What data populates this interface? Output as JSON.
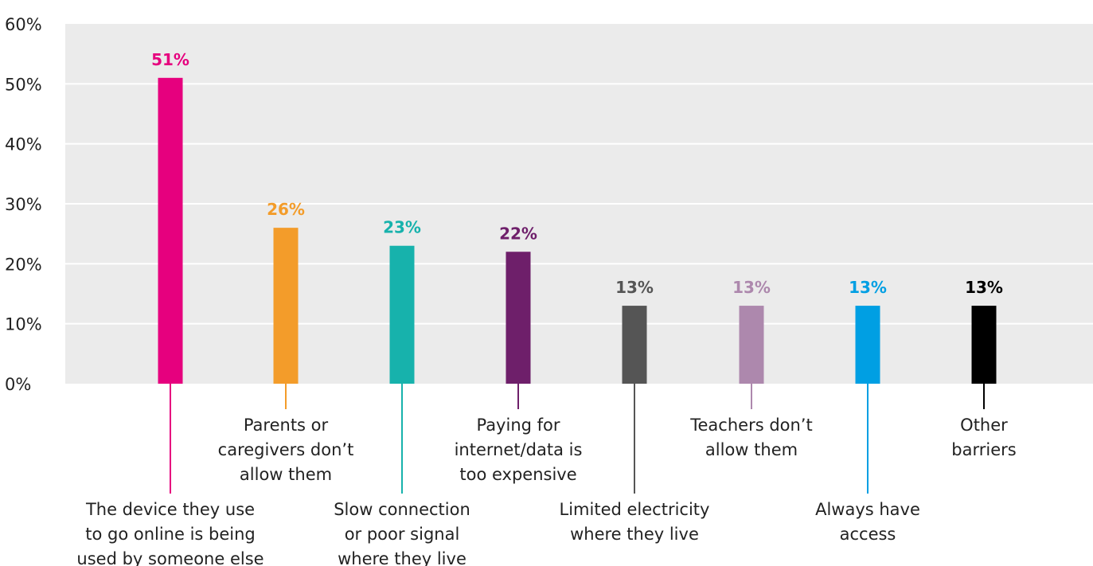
{
  "chart_data": {
    "type": "bar",
    "title": "",
    "xlabel": "",
    "ylabel": "",
    "ylim": [
      0,
      60
    ],
    "yticks": [
      0,
      10,
      20,
      30,
      40,
      50,
      60
    ],
    "ytick_labels": [
      "0%",
      "10%",
      "20%",
      "30%",
      "40%",
      "50%",
      "60%"
    ],
    "grid": true,
    "categories": [
      "The device they use to go online is being used by someone else",
      "Parents or caregivers don’t allow them",
      "Slow connection or poor signal where they live",
      "Paying for internet/data is too expensive",
      "Limited electricity where they live",
      "Teachers don’t allow them",
      "Always have access",
      "Other barriers"
    ],
    "category_lines": [
      [
        "The device they use",
        "to go online is being",
        "used by someone else"
      ],
      [
        "Parents or",
        "caregivers don’t",
        "allow them"
      ],
      [
        "Slow connection",
        "or poor signal",
        "where they live"
      ],
      [
        "Paying for",
        "internet/data is",
        "too expensive"
      ],
      [
        "Limited electricity",
        "where they live"
      ],
      [
        "Teachers don’t",
        "allow them"
      ],
      [
        "Always have",
        "access"
      ],
      [
        "Other",
        "barriers"
      ]
    ],
    "values": [
      51,
      26,
      23,
      22,
      13,
      13,
      13,
      13
    ],
    "data_labels": [
      "51%",
      "26%",
      "23%",
      "22%",
      "13%",
      "13%",
      "13%",
      "13%"
    ],
    "colors": [
      "#e6007e",
      "#f39c2a",
      "#17b2ac",
      "#6e1f6a",
      "#555555",
      "#ad88ad",
      "#009fe3",
      "#000000"
    ],
    "plot_background": "#ebebeb",
    "gridline_color": "#ffffff"
  }
}
